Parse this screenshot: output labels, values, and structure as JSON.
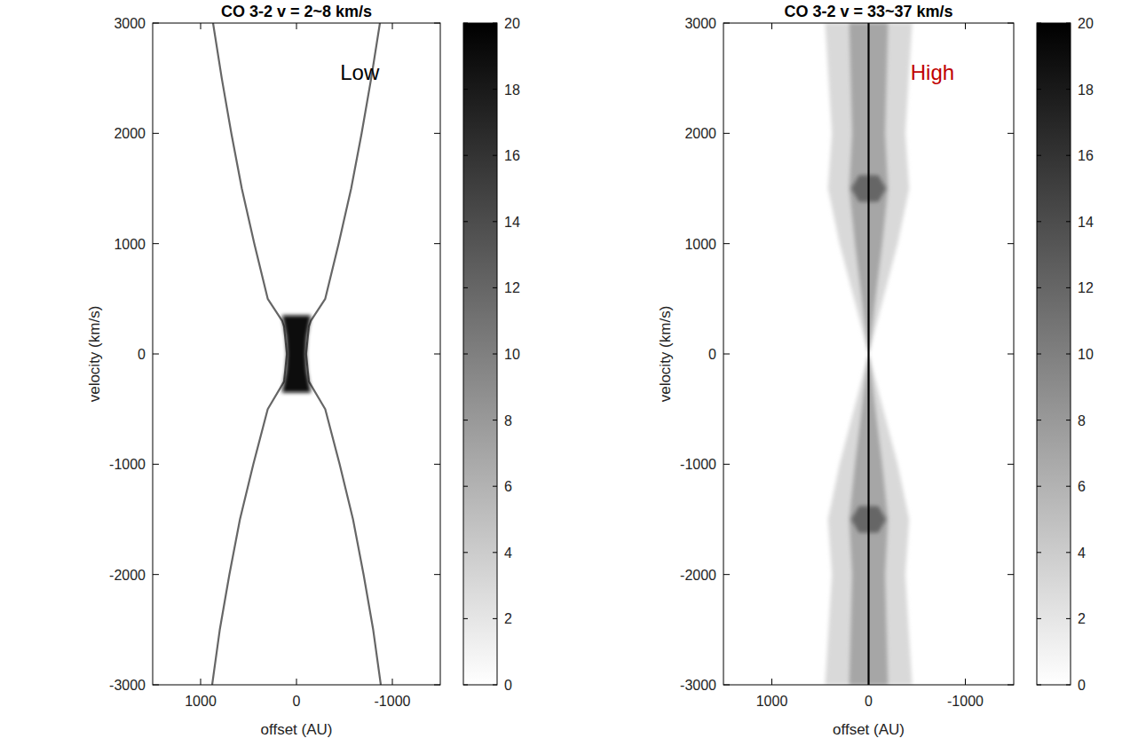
{
  "chart_data": [
    {
      "type": "pv",
      "title": "CO 3-2 v = 2~8 km/s",
      "annotation": {
        "text": "Low",
        "color": "#000000"
      },
      "x_label": "offset (AU)",
      "y_label": "velocity (km/s)",
      "xlim": [
        1500,
        -1500
      ],
      "xticks": [
        1000,
        0,
        -1000
      ],
      "ylim": [
        -3000,
        3000
      ],
      "yticks": [
        -3000,
        -2000,
        -1000,
        0,
        1000,
        2000,
        3000
      ],
      "colorbar": {
        "range": [
          0,
          20
        ],
        "ticks": [
          0,
          2,
          4,
          6,
          8,
          10,
          12,
          14,
          16,
          18,
          20
        ]
      },
      "series": [
        {
          "type": "line",
          "level": 12,
          "x": [
            -870,
            -780,
            -680,
            -570,
            -440,
            -300,
            -150,
            -130,
            -100,
            -130,
            -300,
            -450,
            -590,
            -700,
            -800,
            -880
          ],
          "values": [
            3000,
            2500,
            2000,
            1500,
            1000,
            500,
            300,
            250,
            0,
            -250,
            -500,
            -1000,
            -1500,
            -2000,
            -2500,
            -3000
          ]
        },
        {
          "type": "line",
          "level": 12,
          "x": [
            870,
            780,
            680,
            570,
            440,
            300,
            150,
            130,
            100,
            130,
            300,
            450,
            590,
            700,
            800,
            880
          ],
          "values": [
            3000,
            2500,
            2000,
            1500,
            1000,
            500,
            300,
            250,
            0,
            -250,
            -500,
            -1000,
            -1500,
            -2000,
            -2500,
            -3000
          ]
        },
        {
          "type": "area",
          "level": 19,
          "x": [
            -150,
            -110,
            -100,
            -110,
            -150,
            150,
            110,
            100,
            110,
            150
          ],
          "values": [
            350,
            150,
            0,
            -150,
            -350,
            -350,
            -150,
            0,
            150,
            350
          ]
        }
      ]
    },
    {
      "type": "pv",
      "title": "CO 3-2 v = 33~37 km/s",
      "annotation": {
        "text": "High",
        "color": "#c00000"
      },
      "x_label": "offset (AU)",
      "y_label": "velocity (km/s)",
      "xlim": [
        1500,
        -1500
      ],
      "xticks": [
        1000,
        0,
        -1000
      ],
      "ylim": [
        -3000,
        3000
      ],
      "yticks": [
        -3000,
        -2000,
        -1000,
        0,
        1000,
        2000,
        3000
      ],
      "colorbar": {
        "range": [
          0,
          20
        ],
        "ticks": [
          0,
          2,
          4,
          6,
          8,
          10,
          12,
          14,
          16,
          18,
          20
        ]
      },
      "series": [
        {
          "type": "area",
          "level": 3,
          "x": [
            -450,
            -380,
            -420,
            -300,
            -150,
            0,
            -150,
            -300,
            -420,
            -380,
            -450,
            450,
            380,
            420,
            300,
            150,
            0,
            150,
            300,
            420,
            380,
            450
          ],
          "values": [
            3000,
            2000,
            1500,
            1000,
            500,
            0,
            -500,
            -1000,
            -1500,
            -2000,
            -3000,
            -3000,
            -2000,
            -1500,
            -1000,
            -500,
            0,
            500,
            1000,
            1500,
            2000,
            3000
          ]
        },
        {
          "type": "area",
          "level": 7,
          "x": [
            -200,
            -170,
            -200,
            -140,
            -70,
            0,
            -70,
            -140,
            -200,
            -170,
            -200,
            200,
            170,
            200,
            140,
            70,
            0,
            70,
            140,
            200,
            170,
            200
          ],
          "values": [
            3000,
            2000,
            1500,
            1000,
            500,
            0,
            -500,
            -1000,
            -1500,
            -2000,
            -3000,
            -3000,
            -2000,
            -1500,
            -1000,
            -500,
            0,
            500,
            1000,
            1500,
            2000,
            3000
          ]
        },
        {
          "type": "area",
          "level": 12,
          "x": [
            -180,
            -100,
            100,
            180,
            100,
            -100
          ],
          "values": [
            1500,
            1620,
            1620,
            1500,
            1380,
            1380
          ]
        },
        {
          "type": "area",
          "level": 12,
          "x": [
            -180,
            -100,
            100,
            180,
            100,
            -100
          ],
          "values": [
            -1500,
            -1380,
            -1380,
            -1500,
            -1620,
            -1620
          ]
        },
        {
          "type": "line",
          "level": 20,
          "x": [
            0,
            0
          ],
          "values": [
            -3000,
            3000
          ]
        }
      ]
    }
  ]
}
